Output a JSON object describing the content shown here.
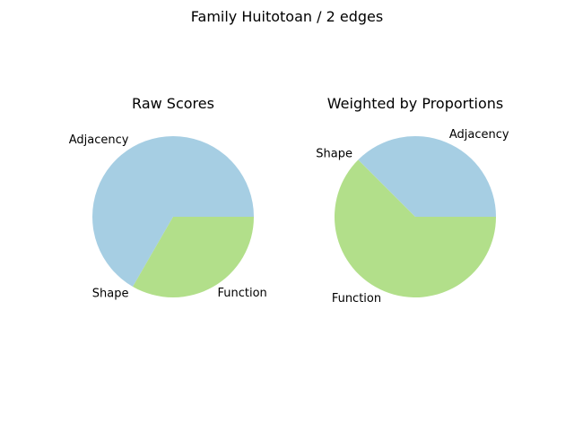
{
  "figure": {
    "title": "Family Huitotoan / 2 edges"
  },
  "chart_data": [
    {
      "type": "pie",
      "title": "Raw Scores",
      "labels": [
        "Adjacency",
        "Shape",
        "Function"
      ],
      "values": [
        0.6667,
        0.0,
        0.3333
      ],
      "colors": [
        "#a6cee3",
        "#1f78b4",
        "#b2df8a"
      ]
    },
    {
      "type": "pie",
      "title": "Weighted by Proportions",
      "labels": [
        "Adjacency",
        "Shape",
        "Function"
      ],
      "values": [
        0.375,
        0.0,
        0.625
      ],
      "colors": [
        "#a6cee3",
        "#1f78b4",
        "#b2df8a"
      ]
    }
  ]
}
